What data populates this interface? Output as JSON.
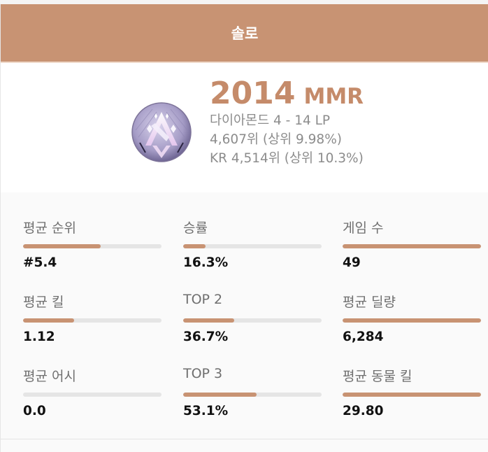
{
  "header": {
    "title": "솔로"
  },
  "profile": {
    "emblem_icon": "diamond-rank-emblem",
    "mmr_value": "2014",
    "mmr_unit": "MMR",
    "tier": "다이아몬드 4 - 14 LP",
    "global_rank": "4,607위 (상위 9.98%)",
    "region_rank": "KR 4,514위 (상위 10.3%)"
  },
  "stats": [
    {
      "label": "평균 순위",
      "value": "#5.4",
      "bar_pct": 56
    },
    {
      "label": "승률",
      "value": "16.3%",
      "bar_pct": 16
    },
    {
      "label": "게임 수",
      "value": "49",
      "bar_pct": 100
    },
    {
      "label": "평균 킬",
      "value": "1.12",
      "bar_pct": 37
    },
    {
      "label": "TOP 2",
      "value": "36.7%",
      "bar_pct": 37
    },
    {
      "label": "평균 딜량",
      "value": "6,284",
      "bar_pct": 100
    },
    {
      "label": "평균 어시",
      "value": "0.0",
      "bar_pct": 0
    },
    {
      "label": "TOP 3",
      "value": "53.1%",
      "bar_pct": 53
    },
    {
      "label": "평균 동물 킬",
      "value": "29.80",
      "bar_pct": 100
    }
  ],
  "colors": {
    "accent": "#c89373",
    "mmr": "#c58b6a",
    "bar_track": "#e5e5e5"
  }
}
